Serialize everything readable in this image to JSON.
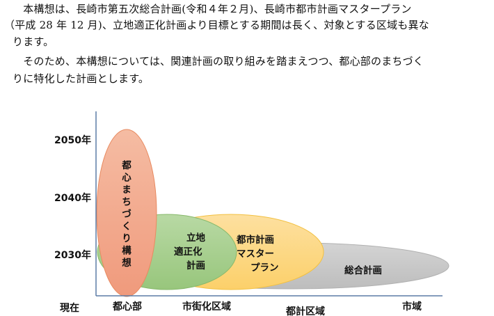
{
  "paragraphs": [
    "　本構想は、長崎市第五次総合計画(令和４年２月)、長崎市都市計画マスタープラン",
    "（平成 28 年 12 月)、立地適正化計画より目標とする期間は長く、対象とする区域も異な",
    "ります。",
    "　そのため、本構想については、関連計画の取り組みを踏まえつつ、都心部のまちづく",
    "りに特化した計画とします。"
  ],
  "diagram": {
    "y_labels": [
      "2050年",
      "2040年",
      "2030年"
    ],
    "x_labels": [
      "現在",
      "都心部",
      "市街化区域",
      "都計区域",
      "市域"
    ],
    "plans": {
      "sogo": {
        "label": "総合計画",
        "color": "#c8c8c8"
      },
      "master": {
        "lines": [
          "都市計画",
          "マスター",
          "プラン"
        ],
        "color": "#fdd783"
      },
      "ricchi": {
        "lines": [
          "立地",
          "適正化",
          "計画"
        ],
        "color": "#a6cf8e"
      },
      "toshin": {
        "label": "都心まちづくり構想",
        "color": "#f2a188"
      }
    },
    "axis_color": "#5b7ca6"
  }
}
